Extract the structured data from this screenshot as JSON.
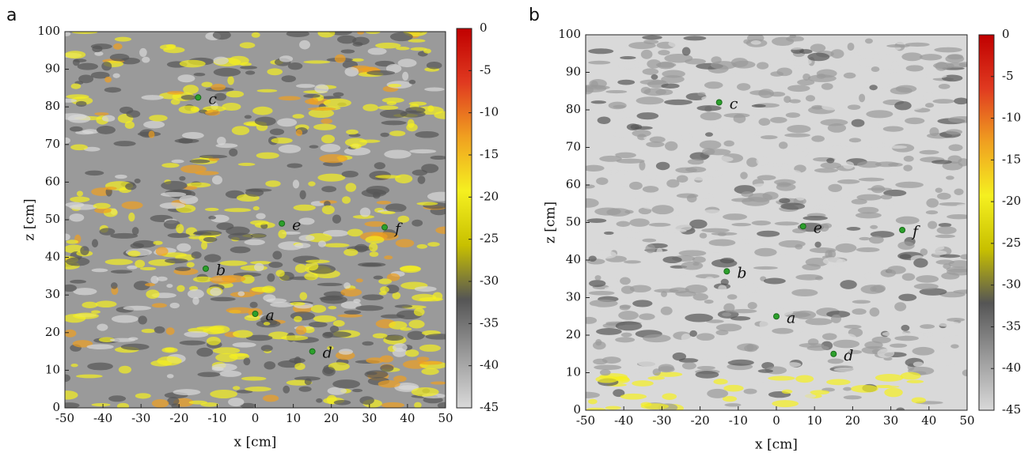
{
  "chart_data": [
    {
      "type": "heatmap",
      "panel": "a",
      "xlabel": "x [cm]",
      "ylabel": "z [cm]",
      "xlim": [
        -50,
        50
      ],
      "xticks": [
        -50,
        -40,
        -30,
        -20,
        -10,
        0,
        10,
        20,
        30,
        40,
        50
      ],
      "ylim": [
        0,
        100
      ],
      "yticks": [
        0,
        10,
        20,
        30,
        40,
        50,
        60,
        70,
        80,
        90,
        100
      ],
      "clim": [
        -45,
        0
      ],
      "cticks": [
        0,
        -5,
        -10,
        -15,
        -20,
        -25,
        -30,
        -35,
        -40,
        -45
      ],
      "colormap": [
        "#d9d9d9",
        "#9a9a9a",
        "#555555",
        "#c8c000",
        "#f5f020",
        "#f0a020",
        "#e03a20",
        "#c00000"
      ],
      "point_color": "#2ca02c",
      "points": {
        "labels": [
          "a",
          "b",
          "c",
          "d",
          "e",
          "f"
        ],
        "x": [
          0,
          -13,
          -15,
          15,
          7,
          34
        ],
        "y": [
          25,
          37,
          82.5,
          15,
          49,
          48
        ]
      }
    },
    {
      "type": "heatmap",
      "panel": "b",
      "xlabel": "x [cm]",
      "ylabel": "z [cm]",
      "xlim": [
        -50,
        50
      ],
      "xticks": [
        -50,
        -40,
        -30,
        -20,
        -10,
        0,
        10,
        20,
        30,
        40,
        50
      ],
      "ylim": [
        0,
        100
      ],
      "yticks": [
        0,
        10,
        20,
        30,
        40,
        50,
        60,
        70,
        80,
        90,
        100
      ],
      "clim": [
        -45,
        0
      ],
      "cticks": [
        0,
        -5,
        -10,
        -15,
        -20,
        -25,
        -30,
        -35,
        -40,
        -45
      ],
      "colormap": [
        "#d9d9d9",
        "#9a9a9a",
        "#555555",
        "#c8c000",
        "#f5f020",
        "#f0a020",
        "#e03a20",
        "#c00000"
      ],
      "point_color": "#2ca02c",
      "points": {
        "labels": [
          "a",
          "b",
          "c",
          "d",
          "e",
          "f"
        ],
        "x": [
          0,
          -13,
          -15,
          15,
          7,
          33
        ],
        "y": [
          25,
          37,
          82,
          15,
          49,
          48
        ]
      }
    }
  ]
}
